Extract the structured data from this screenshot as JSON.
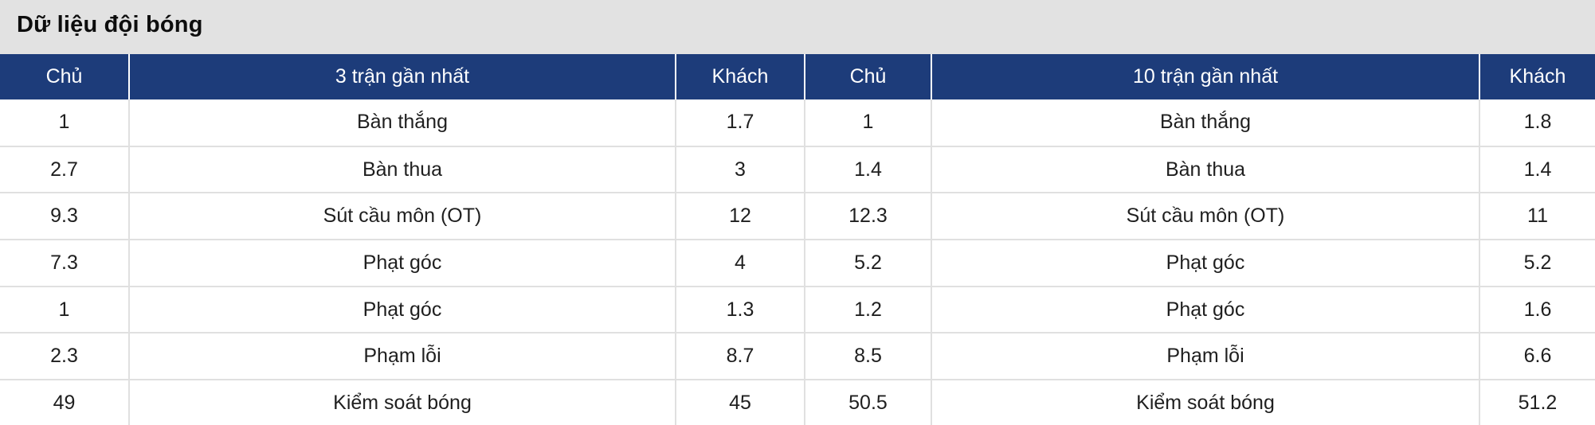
{
  "page": {
    "title": "Dữ liệu đội bóng"
  },
  "table": {
    "columns": [
      {
        "label": "Chủ"
      },
      {
        "label": "3 trận gần nhất"
      },
      {
        "label": "Khách"
      },
      {
        "label": "Chủ"
      },
      {
        "label": "10 trận gần nhất"
      },
      {
        "label": "Khách"
      }
    ],
    "rows": [
      [
        "1",
        "Bàn thắng",
        "1.7",
        "1",
        "Bàn thắng",
        "1.8"
      ],
      [
        "2.7",
        "Bàn thua",
        "3",
        "1.4",
        "Bàn thua",
        "1.4"
      ],
      [
        "9.3",
        "Sút cầu môn (OT)",
        "12",
        "12.3",
        "Sút cầu môn (OT)",
        "11"
      ],
      [
        "7.3",
        "Phạt góc",
        "4",
        "5.2",
        "Phạt góc",
        "5.2"
      ],
      [
        "1",
        "Phạt góc",
        "1.3",
        "1.2",
        "Phạt góc",
        "1.6"
      ],
      [
        "2.3",
        "Phạm lỗi",
        "8.7",
        "8.5",
        "Phạm lỗi",
        "6.6"
      ],
      [
        "49",
        "Kiểm soát bóng",
        "45",
        "50.5",
        "Kiểm soát bóng",
        "51.2"
      ]
    ]
  },
  "colors": {
    "page_bg": "#e2e2e2",
    "header_bg": "#1d3c7a",
    "header_text": "#ffffff",
    "row_bg": "#ffffff",
    "border": "#e0e0e0",
    "text": "#1f1f1f",
    "title_text": "#0d0d0d"
  }
}
